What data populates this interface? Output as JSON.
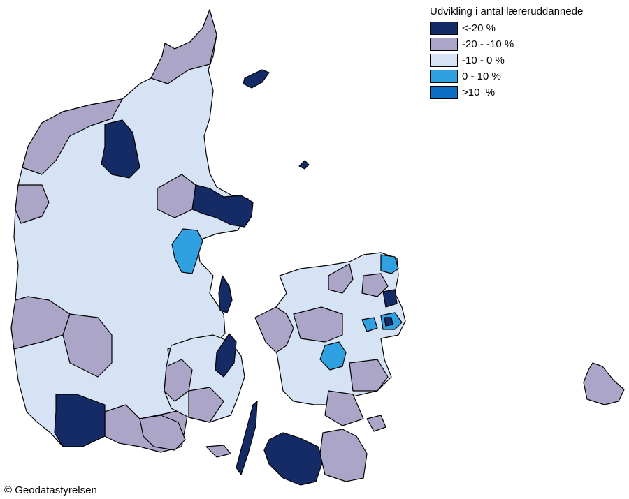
{
  "legend": {
    "title": "Udvikling i antal læreruddannede",
    "items": [
      {
        "label": "<-20 %",
        "color": "#142b66"
      },
      {
        "label": "-20 - -10 %",
        "color": "#aba5c8"
      },
      {
        "label": "-10 - 0 %",
        "color": "#d5e3f5"
      },
      {
        "label": "0 - 10 %",
        "color": "#2fa1e0"
      },
      {
        "label": ">10  %",
        "color": "#0b6ec5"
      }
    ]
  },
  "copyright": "© Geodatastyrelsen",
  "colors": {
    "dark": "#142b66",
    "purple": "#aba5c8",
    "light": "#d5e3f5",
    "mid_blue": "#2fa1e0",
    "strong_blue": "#0b6ec5"
  }
}
